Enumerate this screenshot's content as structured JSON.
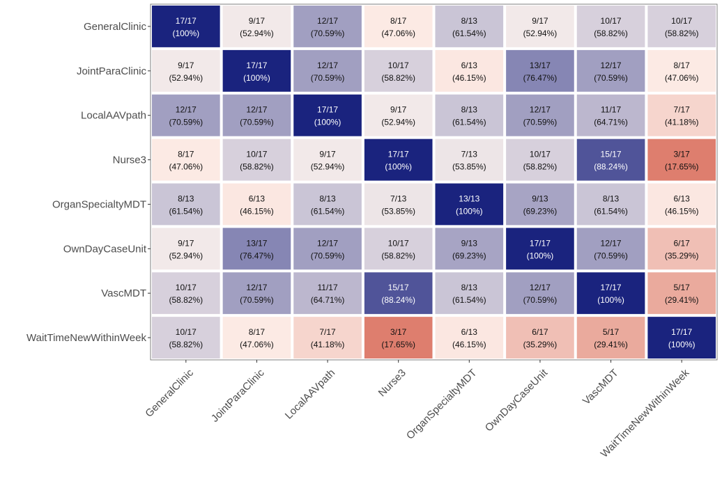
{
  "chart_data": {
    "type": "heatmap",
    "title": "",
    "xlabel": "",
    "ylabel": "",
    "categories_x": [
      "GeneralClinic",
      "JointParaClinic",
      "LocalAAVpath",
      "Nurse3",
      "OrganSpecialtyMDT",
      "OwnDayCaseUnit",
      "VascMDT",
      "WaitTimeNewWithinWeek"
    ],
    "categories_y": [
      "GeneralClinic",
      "JointParaClinic",
      "LocalAAVpath",
      "Nurse3",
      "OrganSpecialtyMDT",
      "OwnDayCaseUnit",
      "VascMDT",
      "WaitTimeNewWithinWeek"
    ],
    "rows": [
      {
        "name": "GeneralClinic",
        "cells": [
          {
            "count": "17/17",
            "pct": "(100%)",
            "value": 100
          },
          {
            "count": "9/17",
            "pct": "(52.94%)",
            "value": 52.94
          },
          {
            "count": "12/17",
            "pct": "(70.59%)",
            "value": 70.59
          },
          {
            "count": "8/17",
            "pct": "(47.06%)",
            "value": 47.06
          },
          {
            "count": "8/13",
            "pct": "(61.54%)",
            "value": 61.54
          },
          {
            "count": "9/17",
            "pct": "(52.94%)",
            "value": 52.94
          },
          {
            "count": "10/17",
            "pct": "(58.82%)",
            "value": 58.82
          },
          {
            "count": "10/17",
            "pct": "(58.82%)",
            "value": 58.82
          }
        ]
      },
      {
        "name": "JointParaClinic",
        "cells": [
          {
            "count": "9/17",
            "pct": "(52.94%)",
            "value": 52.94
          },
          {
            "count": "17/17",
            "pct": "(100%)",
            "value": 100
          },
          {
            "count": "12/17",
            "pct": "(70.59%)",
            "value": 70.59
          },
          {
            "count": "10/17",
            "pct": "(58.82%)",
            "value": 58.82
          },
          {
            "count": "6/13",
            "pct": "(46.15%)",
            "value": 46.15
          },
          {
            "count": "13/17",
            "pct": "(76.47%)",
            "value": 76.47
          },
          {
            "count": "12/17",
            "pct": "(70.59%)",
            "value": 70.59
          },
          {
            "count": "8/17",
            "pct": "(47.06%)",
            "value": 47.06
          }
        ]
      },
      {
        "name": "LocalAAVpath",
        "cells": [
          {
            "count": "12/17",
            "pct": "(70.59%)",
            "value": 70.59
          },
          {
            "count": "12/17",
            "pct": "(70.59%)",
            "value": 70.59
          },
          {
            "count": "17/17",
            "pct": "(100%)",
            "value": 100
          },
          {
            "count": "9/17",
            "pct": "(52.94%)",
            "value": 52.94
          },
          {
            "count": "8/13",
            "pct": "(61.54%)",
            "value": 61.54
          },
          {
            "count": "12/17",
            "pct": "(70.59%)",
            "value": 70.59
          },
          {
            "count": "11/17",
            "pct": "(64.71%)",
            "value": 64.71
          },
          {
            "count": "7/17",
            "pct": "(41.18%)",
            "value": 41.18
          }
        ]
      },
      {
        "name": "Nurse3",
        "cells": [
          {
            "count": "8/17",
            "pct": "(47.06%)",
            "value": 47.06
          },
          {
            "count": "10/17",
            "pct": "(58.82%)",
            "value": 58.82
          },
          {
            "count": "9/17",
            "pct": "(52.94%)",
            "value": 52.94
          },
          {
            "count": "17/17",
            "pct": "(100%)",
            "value": 100
          },
          {
            "count": "7/13",
            "pct": "(53.85%)",
            "value": 53.85
          },
          {
            "count": "10/17",
            "pct": "(58.82%)",
            "value": 58.82
          },
          {
            "count": "15/17",
            "pct": "(88.24%)",
            "value": 88.24
          },
          {
            "count": "3/17",
            "pct": "(17.65%)",
            "value": 17.65
          }
        ]
      },
      {
        "name": "OrganSpecialtyMDT",
        "cells": [
          {
            "count": "8/13",
            "pct": "(61.54%)",
            "value": 61.54
          },
          {
            "count": "6/13",
            "pct": "(46.15%)",
            "value": 46.15
          },
          {
            "count": "8/13",
            "pct": "(61.54%)",
            "value": 61.54
          },
          {
            "count": "7/13",
            "pct": "(53.85%)",
            "value": 53.85
          },
          {
            "count": "13/13",
            "pct": "(100%)",
            "value": 100
          },
          {
            "count": "9/13",
            "pct": "(69.23%)",
            "value": 69.23
          },
          {
            "count": "8/13",
            "pct": "(61.54%)",
            "value": 61.54
          },
          {
            "count": "6/13",
            "pct": "(46.15%)",
            "value": 46.15
          }
        ]
      },
      {
        "name": "OwnDayCaseUnit",
        "cells": [
          {
            "count": "9/17",
            "pct": "(52.94%)",
            "value": 52.94
          },
          {
            "count": "13/17",
            "pct": "(76.47%)",
            "value": 76.47
          },
          {
            "count": "12/17",
            "pct": "(70.59%)",
            "value": 70.59
          },
          {
            "count": "10/17",
            "pct": "(58.82%)",
            "value": 58.82
          },
          {
            "count": "9/13",
            "pct": "(69.23%)",
            "value": 69.23
          },
          {
            "count": "17/17",
            "pct": "(100%)",
            "value": 100
          },
          {
            "count": "12/17",
            "pct": "(70.59%)",
            "value": 70.59
          },
          {
            "count": "6/17",
            "pct": "(35.29%)",
            "value": 35.29
          }
        ]
      },
      {
        "name": "VascMDT",
        "cells": [
          {
            "count": "10/17",
            "pct": "(58.82%)",
            "value": 58.82
          },
          {
            "count": "12/17",
            "pct": "(70.59%)",
            "value": 70.59
          },
          {
            "count": "11/17",
            "pct": "(64.71%)",
            "value": 64.71
          },
          {
            "count": "15/17",
            "pct": "(88.24%)",
            "value": 88.24
          },
          {
            "count": "8/13",
            "pct": "(61.54%)",
            "value": 61.54
          },
          {
            "count": "12/17",
            "pct": "(70.59%)",
            "value": 70.59
          },
          {
            "count": "17/17",
            "pct": "(100%)",
            "value": 100
          },
          {
            "count": "5/17",
            "pct": "(29.41%)",
            "value": 29.41
          }
        ]
      },
      {
        "name": "WaitTimeNewWithinWeek",
        "cells": [
          {
            "count": "10/17",
            "pct": "(58.82%)",
            "value": 58.82
          },
          {
            "count": "8/17",
            "pct": "(47.06%)",
            "value": 47.06
          },
          {
            "count": "7/17",
            "pct": "(41.18%)",
            "value": 41.18
          },
          {
            "count": "3/17",
            "pct": "(17.65%)",
            "value": 17.65
          },
          {
            "count": "6/13",
            "pct": "(46.15%)",
            "value": 46.15
          },
          {
            "count": "6/17",
            "pct": "(35.29%)",
            "value": 35.29
          },
          {
            "count": "5/17",
            "pct": "(29.41%)",
            "value": 29.41
          },
          {
            "count": "17/17",
            "pct": "(100%)",
            "value": 100
          }
        ]
      }
    ],
    "color_scale": {
      "type": "diverging",
      "low_color": "#d6604d",
      "mid_color": "#fff5f0",
      "high_color": "#1a237e",
      "midpoint_value": 50,
      "range": [
        0,
        100
      ]
    },
    "grid": false,
    "legend": "none"
  }
}
